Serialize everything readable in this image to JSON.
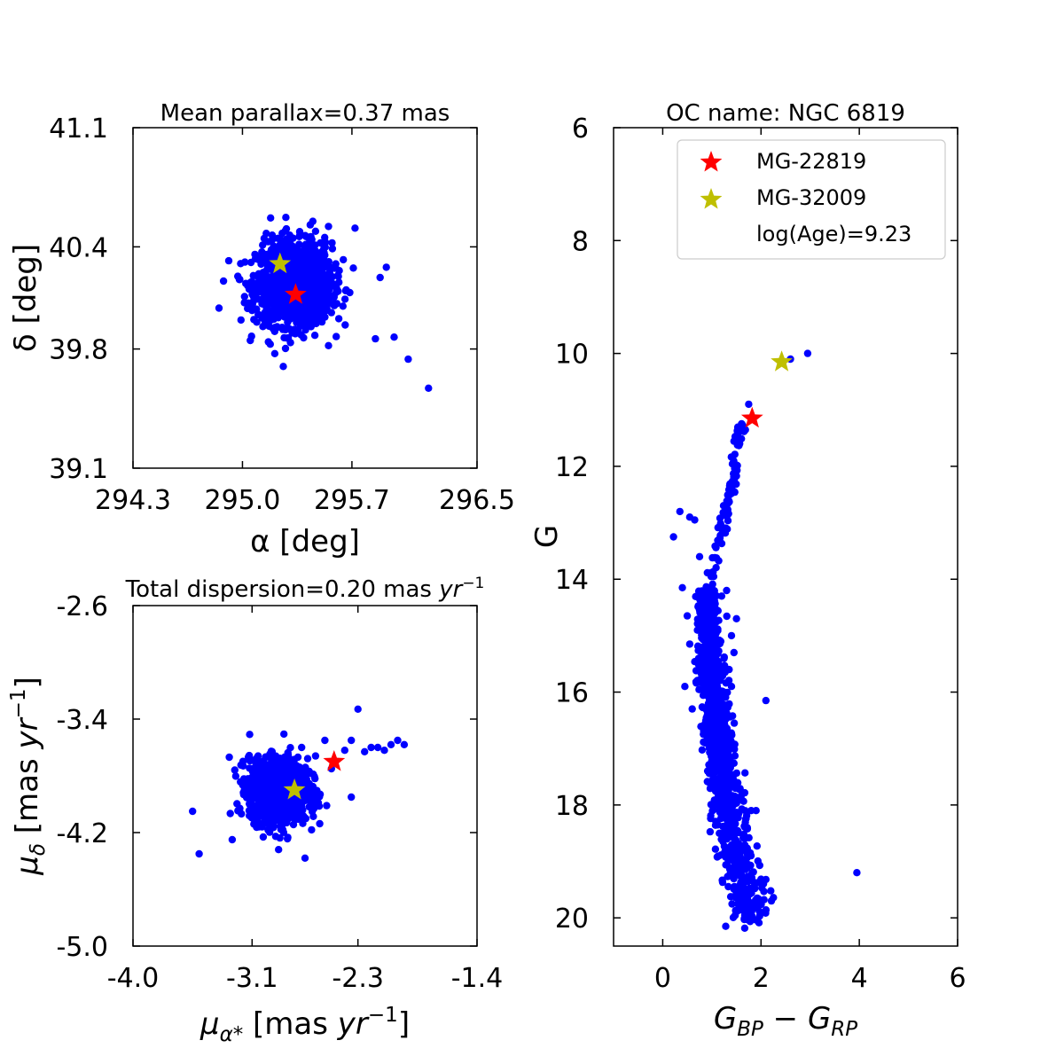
{
  "colors": {
    "members": "#0000ff",
    "star1": "#ff0000",
    "star2": "#bfbf00"
  },
  "chart_data": [
    {
      "id": "sky",
      "type": "scatter",
      "title": "Mean parallax=0.37 mas",
      "xlabel": "α [deg]",
      "ylabel": "δ [deg]",
      "xlim": [
        294.3,
        296.5
      ],
      "ylim": [
        39.1,
        41.1
      ],
      "xticks": [
        294.3,
        295.0,
        295.7,
        296.5
      ],
      "xtick_labels": [
        "294.3",
        "295.0",
        "295.7",
        "296.5"
      ],
      "yticks": [
        39.1,
        39.8,
        40.4,
        41.1
      ],
      "ytick_labels": [
        "39.1",
        "39.8",
        "40.4",
        "41.1"
      ],
      "cluster": {
        "center": [
          295.33,
          40.18
        ],
        "spread": [
          0.12,
          0.12
        ],
        "n": 1400
      },
      "outliers": [
        [
          295.18,
          40.57
        ],
        [
          295.45,
          40.55
        ],
        [
          295.55,
          40.52
        ],
        [
          295.72,
          40.51
        ],
        [
          295.88,
          40.22
        ],
        [
          295.92,
          40.28
        ],
        [
          294.85,
          40.04
        ],
        [
          295.85,
          39.86
        ],
        [
          295.97,
          39.87
        ],
        [
          296.06,
          39.74
        ],
        [
          296.19,
          39.57
        ],
        [
          295.05,
          39.85
        ],
        [
          295.55,
          39.82
        ]
      ],
      "stars": [
        {
          "name": "MG-22819",
          "x": 295.34,
          "y": 40.12,
          "color": "#ff0000"
        },
        {
          "name": "MG-32009",
          "x": 295.24,
          "y": 40.3,
          "color": "#bfbf00"
        }
      ]
    },
    {
      "id": "pm",
      "type": "scatter",
      "title": "Total dispersion=0.20 mas ",
      "title_unit": "yr",
      "title_exp": "−1",
      "xlabel": "μ",
      "xlabel_sub": "α*",
      "xlabel_rest": " [mas ",
      "xlabel_unit": "yr",
      "xlabel_exp": "−1",
      "xlabel_close": "]",
      "ylabel": "μ",
      "ylabel_sub": "δ",
      "ylabel_rest": " [mas ",
      "ylabel_unit": "yr",
      "ylabel_exp": "−1",
      "ylabel_close": "]",
      "xlim": [
        -4.0,
        -1.4
      ],
      "ylim": [
        -5.0,
        -2.6
      ],
      "xticks": [
        -4.0,
        -3.1,
        -2.3,
        -1.4
      ],
      "xtick_labels": [
        "-4.0",
        "-3.1",
        "-2.3",
        "-1.4"
      ],
      "yticks": [
        -5.0,
        -4.2,
        -3.4,
        -2.6
      ],
      "ytick_labels": [
        "-5.0",
        "-4.2",
        "-3.4",
        "-2.6"
      ],
      "cluster": {
        "center": [
          -2.9,
          -3.9
        ],
        "spread": [
          0.11,
          0.11
        ],
        "n": 1400
      },
      "outliers": [
        [
          -2.3,
          -3.33
        ],
        [
          -2.05,
          -3.58
        ],
        [
          -1.95,
          -3.58
        ],
        [
          -2.15,
          -3.6
        ],
        [
          -2.35,
          -3.55
        ],
        [
          -2.25,
          -3.63
        ],
        [
          -2.4,
          -3.62
        ],
        [
          -2.55,
          -3.55
        ],
        [
          -2.62,
          -3.66
        ],
        [
          -3.55,
          -4.05
        ],
        [
          -3.5,
          -4.35
        ],
        [
          -3.25,
          -4.25
        ],
        [
          -2.9,
          -4.32
        ],
        [
          -2.7,
          -4.38
        ],
        [
          -2.35,
          -3.95
        ],
        [
          -2.5,
          -3.75
        ],
        [
          -2.2,
          -3.6
        ],
        [
          -2.1,
          -3.62
        ],
        [
          -2.0,
          -3.55
        ]
      ],
      "stars": [
        {
          "name": "MG-22819",
          "x": -2.48,
          "y": -3.7,
          "color": "#ff0000"
        },
        {
          "name": "MG-32009",
          "x": -2.78,
          "y": -3.9,
          "color": "#bfbf00"
        }
      ]
    },
    {
      "id": "cmd",
      "type": "scatter",
      "title": "OC name: NGC 6819",
      "xlabel": "G",
      "xlabel_sub": "BP",
      "xlabel_mid": " − G",
      "xlabel_sub2": "RP",
      "ylabel": "G",
      "xlim": [
        -1,
        6
      ],
      "ylim": [
        20.5,
        6
      ],
      "y_inverted": true,
      "xticks": [
        0,
        2,
        4,
        6
      ],
      "xtick_labels": [
        "0",
        "2",
        "4",
        "6"
      ],
      "yticks": [
        6,
        8,
        10,
        12,
        14,
        16,
        18,
        20
      ],
      "ytick_labels": [
        "6",
        "8",
        "10",
        "12",
        "14",
        "16",
        "18",
        "20"
      ],
      "main_sequence": {
        "g_range": [
          14.2,
          20.2
        ],
        "color_bright": 0.9,
        "color_faint": 1.8,
        "spread": 0.08,
        "n": 1300
      },
      "turnoff_branch": [
        [
          1.0,
          14.1
        ],
        [
          1.1,
          13.5
        ],
        [
          1.25,
          13.0
        ],
        [
          1.35,
          12.6
        ],
        [
          1.42,
          12.3
        ],
        [
          1.5,
          11.8
        ],
        [
          1.55,
          11.4
        ],
        [
          1.6,
          11.25
        ]
      ],
      "outliers": [
        [
          1.75,
          10.9
        ],
        [
          2.6,
          10.1
        ],
        [
          2.95,
          10.0
        ],
        [
          0.22,
          13.25
        ],
        [
          0.35,
          12.8
        ],
        [
          0.55,
          12.9
        ],
        [
          0.65,
          12.95
        ],
        [
          0.75,
          13.6
        ],
        [
          0.4,
          14.15
        ],
        [
          0.5,
          14.65
        ],
        [
          0.55,
          15.15
        ],
        [
          0.45,
          15.9
        ],
        [
          0.6,
          16.3
        ],
        [
          1.5,
          14.7
        ],
        [
          1.4,
          15.0
        ],
        [
          1.45,
          15.3
        ],
        [
          1.35,
          15.6
        ],
        [
          1.4,
          15.9
        ],
        [
          2.1,
          16.15
        ],
        [
          1.8,
          18.1
        ],
        [
          1.9,
          18.1
        ],
        [
          3.95,
          19.2
        ],
        [
          1.2,
          14.3
        ],
        [
          1.3,
          14.2
        ]
      ],
      "stars": [
        {
          "name": "MG-22819",
          "x": 1.82,
          "y": 11.15,
          "color": "#ff0000"
        },
        {
          "name": "MG-32009",
          "x": 2.42,
          "y": 10.15,
          "color": "#bfbf00"
        }
      ],
      "legend": {
        "position": "top-right",
        "entries": [
          {
            "label": "MG-22819",
            "color": "#ff0000"
          },
          {
            "label": "MG-32009",
            "color": "#bfbf00"
          },
          {
            "label": "log(Age)=9.23",
            "color": "none"
          }
        ]
      }
    }
  ]
}
